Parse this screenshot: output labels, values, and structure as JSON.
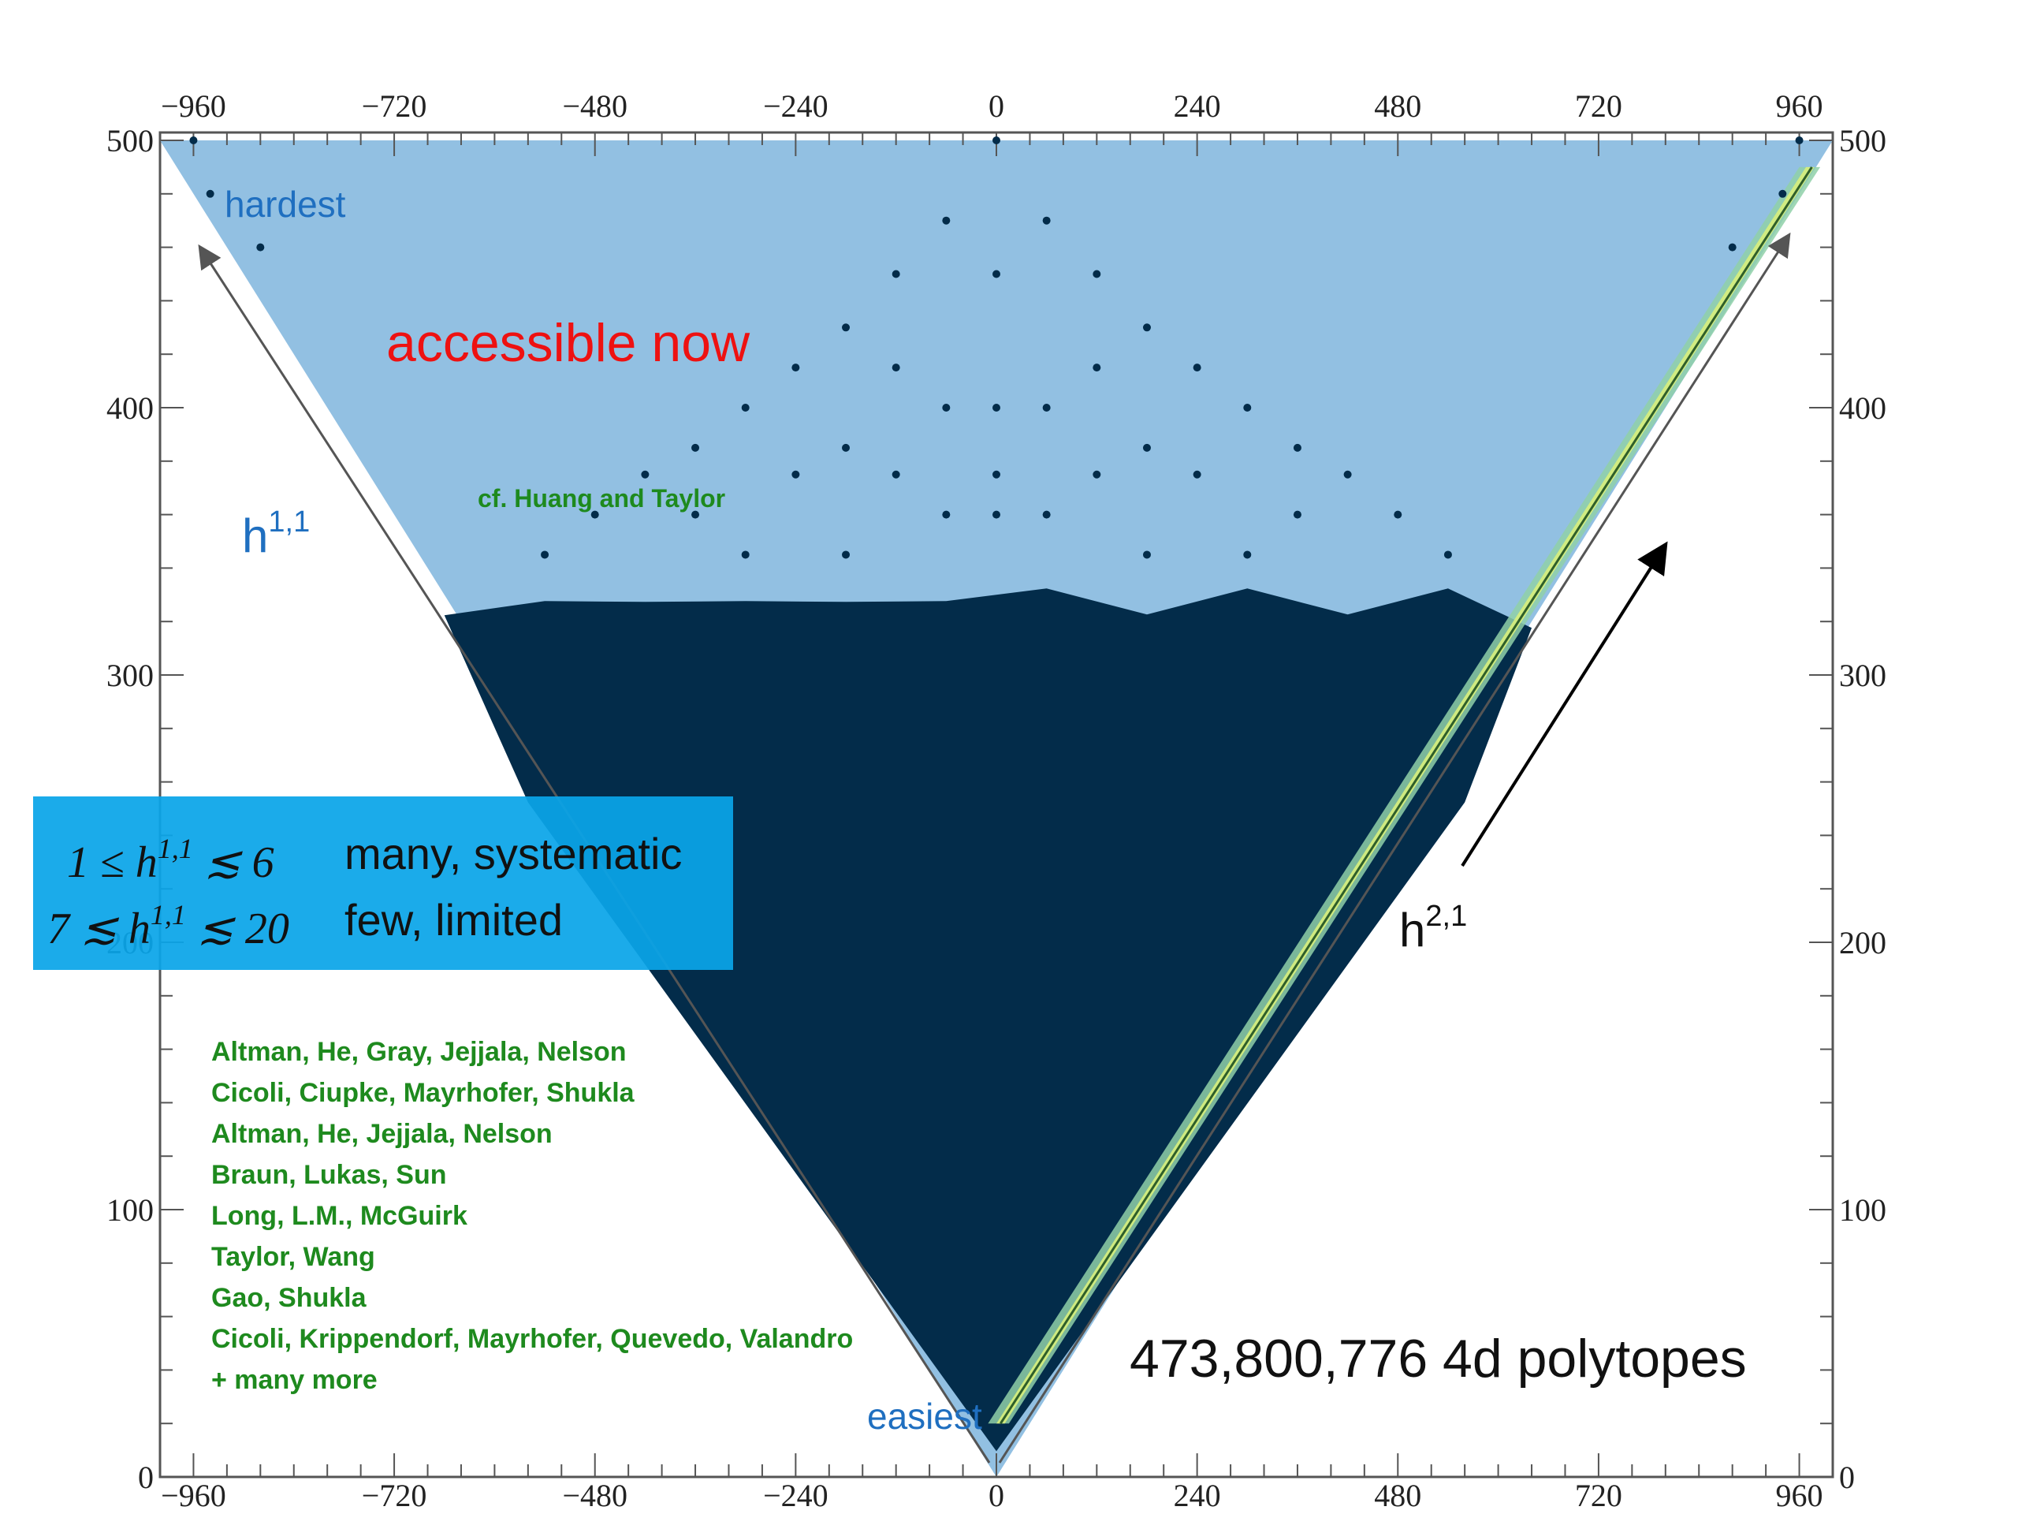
{
  "chart_data": {
    "type": "scatter",
    "x_ticks": [
      "−960",
      "−720",
      "−480",
      "−240",
      "0",
      "240",
      "480",
      "720",
      "960"
    ],
    "x_tick_values": [
      -960,
      -720,
      -480,
      -240,
      0,
      240,
      480,
      720,
      960
    ],
    "y_ticks": [
      "0",
      "100",
      "200",
      "300",
      "400",
      "500"
    ],
    "y_tick_values": [
      0,
      100,
      200,
      300,
      400,
      500
    ],
    "xlim": [
      -1000,
      1000
    ],
    "ylim": [
      0,
      500
    ],
    "region": {
      "name": "accessible now",
      "polygon": [
        [
          -1000,
          500
        ],
        [
          1000,
          500
        ],
        [
          0,
          0
        ]
      ],
      "color": "#92c0e2"
    },
    "dense_core_color": "#032c4a",
    "highlight_band_colors": [
      "#d8ef7c",
      "#8fd0a8"
    ],
    "sparse_points": [
      [
        -960,
        500
      ],
      [
        960,
        500
      ],
      [
        0,
        500
      ],
      [
        -940,
        480
      ],
      [
        940,
        480
      ],
      [
        -880,
        460
      ],
      [
        880,
        460
      ],
      [
        -60,
        470
      ],
      [
        60,
        470
      ],
      [
        -120,
        450
      ],
      [
        0,
        450
      ],
      [
        120,
        450
      ],
      [
        -180,
        430
      ],
      [
        180,
        430
      ],
      [
        -240,
        415
      ],
      [
        -120,
        415
      ],
      [
        120,
        415
      ],
      [
        240,
        415
      ],
      [
        -300,
        400
      ],
      [
        -60,
        400
      ],
      [
        0,
        400
      ],
      [
        60,
        400
      ],
      [
        300,
        400
      ],
      [
        -360,
        385
      ],
      [
        -180,
        385
      ],
      [
        180,
        385
      ],
      [
        360,
        385
      ],
      [
        -420,
        375
      ],
      [
        -240,
        375
      ],
      [
        -120,
        375
      ],
      [
        0,
        375
      ],
      [
        120,
        375
      ],
      [
        240,
        375
      ],
      [
        420,
        375
      ],
      [
        -480,
        360
      ],
      [
        -360,
        360
      ],
      [
        -60,
        360
      ],
      [
        0,
        360
      ],
      [
        60,
        360
      ],
      [
        360,
        360
      ],
      [
        480,
        360
      ],
      [
        -540,
        345
      ],
      [
        -300,
        345
      ],
      [
        -180,
        345
      ],
      [
        180,
        345
      ],
      [
        300,
        345
      ],
      [
        540,
        345
      ]
    ],
    "annotations": {
      "hardest": "hardest",
      "easiest": "easiest",
      "accessible": "accessible now",
      "huang_taylor": "cf. Huang and Taylor",
      "h11_base": "h",
      "h11_sup": "1,1",
      "h21_base": "h",
      "h21_sup": "2,1",
      "polytopes": "473,800,776 4d polytopes"
    },
    "info_box": {
      "row1_math": "1 ≤ h",
      "row1_math_sup": "1,1",
      "row1_math_tail": " ≲ 6",
      "row1_text": "many, systematic",
      "row2_math": "7 ≲ h",
      "row2_math_sup": "1,1",
      "row2_math_tail": " ≲ 20",
      "row2_text": "few, limited"
    },
    "references": [
      "Altman, He, Gray, Jejjala, Nelson",
      "Cicoli, Ciupke, Mayrhofer, Shukla",
      "Altman, He, Jejjala, Nelson",
      "Braun, Lukas, Sun",
      "Long, L.M., McGuirk",
      "Taylor, Wang",
      "Gao, Shukla",
      "Cicoli, Krippendorf, Mayrhofer, Quevedo, Valandro",
      "+ many more"
    ],
    "colors": {
      "accessible": "#ee1111",
      "blue_text": "#1f6fc0",
      "green_text": "#1e8a1e",
      "info_box": "#0aa5e8"
    }
  }
}
